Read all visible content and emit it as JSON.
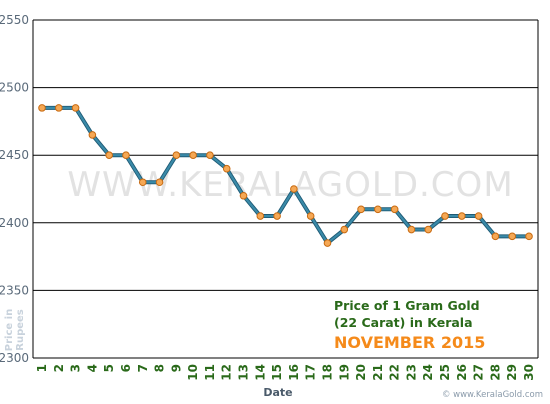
{
  "chart_data": {
    "type": "line",
    "title": "Price of 1 Gram Gold",
    "subtitle": "(22 Carat) in Kerala",
    "period_label": "NOVEMBER 2015",
    "xlabel": "Date",
    "ylabel": "Price in Rupees",
    "watermark": "WWW.KERALAGOLD.COM",
    "credit": "© www.KeralaGold.com",
    "ylim": [
      2300,
      2550
    ],
    "yticks": [
      2300,
      2350,
      2400,
      2450,
      2500,
      2550
    ],
    "grid": true,
    "x": [
      "1",
      "2",
      "3",
      "4",
      "5",
      "6",
      "7",
      "8",
      "9",
      "10",
      "11",
      "12",
      "13",
      "14",
      "15",
      "16",
      "17",
      "18",
      "19",
      "20",
      "21",
      "22",
      "23",
      "24",
      "25",
      "26",
      "27",
      "28",
      "29",
      "30"
    ],
    "series": [
      {
        "values": [
          2485,
          2485,
          2485,
          2465,
          2450,
          2450,
          2430,
          2430,
          2450,
          2450,
          2450,
          2440,
          2420,
          2405,
          2405,
          2425,
          2405,
          2385,
          2395,
          2410,
          2410,
          2410,
          2395,
          2395,
          2405,
          2405,
          2405,
          2390,
          2390,
          2390
        ]
      }
    ],
    "colors": {
      "line": "#3a8aa8",
      "line_border": "#1e5a75",
      "marker_fill": "#f5a855",
      "marker_stroke": "#c86a10",
      "title": "#2a6a1a",
      "period": "#f58a1a",
      "axis_text": "#5a6a7a",
      "x_tick_text": "#2a6a1a",
      "xlabel": "#4a5a6a",
      "watermark": "#e2e2e2"
    }
  }
}
